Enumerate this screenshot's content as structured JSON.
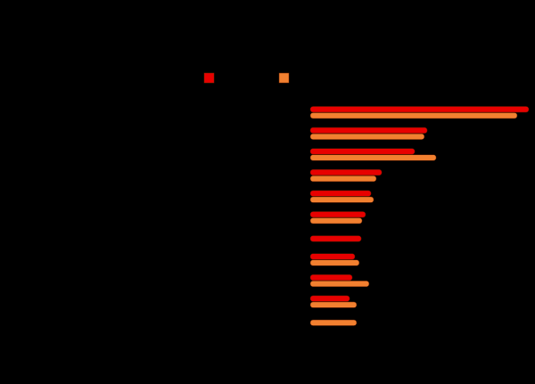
{
  "chart_data": {
    "type": "bar",
    "orientation": "horizontal",
    "title": "",
    "xlabel": "",
    "ylabel": "",
    "categories": [
      "",
      "",
      "",
      "",
      "",
      "",
      "",
      "",
      "",
      "",
      ""
    ],
    "xlim": [
      0,
      100
    ],
    "grid": false,
    "legend_position": "top",
    "series": [
      {
        "color": "#e80000",
        "values": [
          100,
          53.5,
          47.8,
          32.7,
          27.8,
          25.3,
          23.3,
          20.4,
          19.2,
          18,
          null
        ]
      },
      {
        "color": "#f28030",
        "values": [
          94.7,
          52.2,
          57.6,
          30.2,
          29,
          23.7,
          null,
          22.4,
          26.9,
          21.2,
          21.2
        ]
      }
    ],
    "background": "#000000"
  }
}
